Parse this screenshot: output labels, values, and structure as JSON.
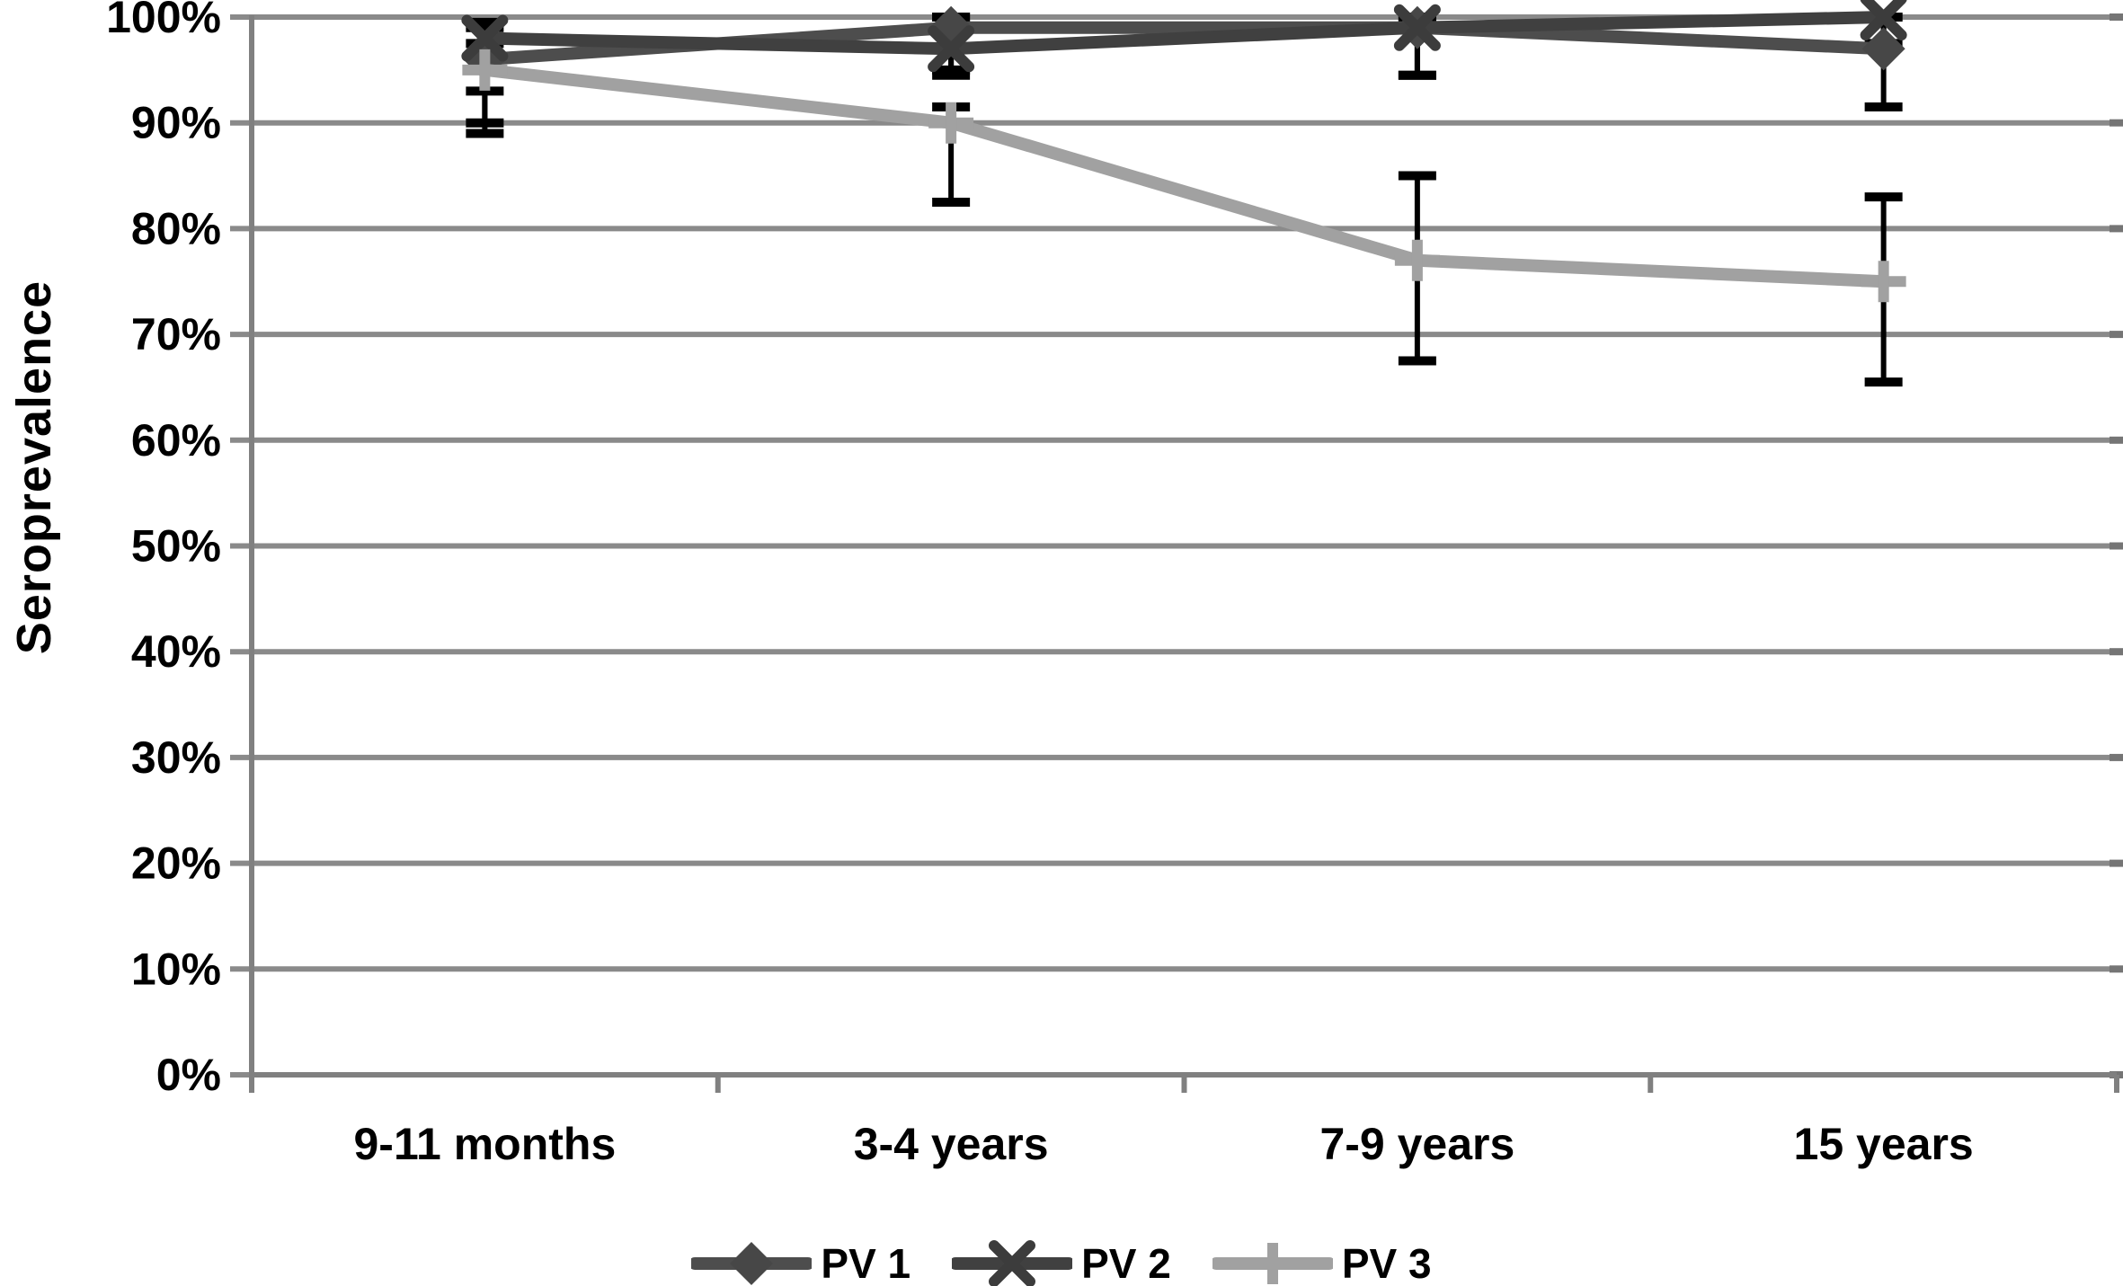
{
  "chart_data": {
    "type": "line",
    "title": "",
    "ylabel": "Seroprevalence",
    "xlabel": "",
    "ylim": [
      0,
      100
    ],
    "grid": "horizontal",
    "legend_position": "bottom",
    "categories": [
      "9-11 months",
      "3-4 years",
      "7-9 years",
      "15 years"
    ],
    "y_ticks": [
      {
        "value": 0,
        "label": "0%"
      },
      {
        "value": 10,
        "label": "10%"
      },
      {
        "value": 20,
        "label": "20%"
      },
      {
        "value": 30,
        "label": "30%"
      },
      {
        "value": 40,
        "label": "40%"
      },
      {
        "value": 50,
        "label": "50%"
      },
      {
        "value": 60,
        "label": "60%"
      },
      {
        "value": 70,
        "label": "70%"
      },
      {
        "value": 80,
        "label": "80%"
      },
      {
        "value": 90,
        "label": "90%"
      },
      {
        "value": 100,
        "label": "100%"
      }
    ],
    "series": [
      {
        "name": "PV 1",
        "marker": "diamond",
        "color": "#4d4d4d",
        "marker_color": "#474747",
        "values": [
          96,
          99,
          99,
          97
        ],
        "err_low": [
          90,
          95,
          94.5,
          91.5
        ],
        "err_high": [
          99,
          100,
          100,
          100
        ]
      },
      {
        "name": "PV 2",
        "marker": "x",
        "color": "#404040",
        "marker_color": "#3c3c3c",
        "values": [
          98,
          97,
          99,
          100
        ],
        "err_low": [
          93,
          94.5,
          94.5,
          97.5
        ],
        "err_high": [
          99.5,
          100,
          100,
          100
        ]
      },
      {
        "name": "PV 3",
        "marker": "plus",
        "color": "#a1a1a1",
        "marker_color": "#a1a1a1",
        "values": [
          95,
          90,
          77,
          75
        ],
        "err_low": [
          89,
          82.5,
          67.5,
          65.5
        ],
        "err_high": [
          97.5,
          91.5,
          85,
          83
        ]
      }
    ],
    "colors": {
      "grid": "#8a8a8a",
      "axis": "#808080",
      "right_tick": "#757575",
      "error_bar": "#000000",
      "text": "#000000",
      "background": "#ffffff"
    }
  }
}
